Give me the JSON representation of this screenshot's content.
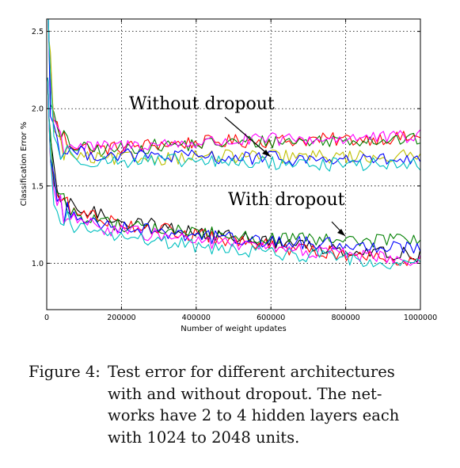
{
  "chart_data": {
    "type": "line",
    "title": "",
    "xlabel": "Number of weight updates",
    "ylabel": "Classification Error %",
    "xlim": [
      0,
      1000000
    ],
    "ylim": [
      0.7,
      2.58
    ],
    "xticks": [
      0,
      200000,
      400000,
      600000,
      800000,
      1000000
    ],
    "xtick_labels": [
      "0",
      "200000",
      "400000",
      "600000",
      "800000",
      "1000000"
    ],
    "yticks": [
      1.0,
      1.5,
      2.0,
      2.5
    ],
    "ytick_labels": [
      "1.0",
      "1.5",
      "2.0",
      "2.5"
    ],
    "grid": true,
    "legend": "none",
    "x": [
      10000,
      20000,
      30000,
      45000,
      60000,
      80000,
      100000,
      150000,
      200000,
      300000,
      400000,
      500000,
      600000,
      700000,
      800000,
      900000,
      1000000
    ],
    "series": [
      {
        "group": "without-dropout",
        "color": "#ff0000",
        "values": [
          2.2,
          1.95,
          1.85,
          1.8,
          1.78,
          1.76,
          1.75,
          1.74,
          1.75,
          1.77,
          1.78,
          1.79,
          1.79,
          1.8,
          1.8,
          1.81,
          1.81
        ]
      },
      {
        "group": "without-dropout",
        "color": "#008000",
        "values": [
          2.1,
          1.9,
          1.83,
          1.78,
          1.76,
          1.75,
          1.74,
          1.73,
          1.74,
          1.76,
          1.77,
          1.78,
          1.79,
          1.79,
          1.8,
          1.8,
          1.8
        ]
      },
      {
        "group": "without-dropout",
        "color": "#ff00ff",
        "values": [
          2.15,
          1.92,
          1.84,
          1.79,
          1.77,
          1.76,
          1.75,
          1.75,
          1.76,
          1.77,
          1.78,
          1.79,
          1.8,
          1.8,
          1.81,
          1.81,
          1.82
        ]
      },
      {
        "group": "without-dropout",
        "color": "#bfbf00",
        "values": [
          2.3,
          1.9,
          1.78,
          1.72,
          1.7,
          1.69,
          1.68,
          1.67,
          1.68,
          1.68,
          1.69,
          1.69,
          1.69,
          1.69,
          1.69,
          1.69,
          1.69
        ]
      },
      {
        "group": "without-dropout",
        "color": "#0000ff",
        "values": [
          2.0,
          1.85,
          1.78,
          1.74,
          1.73,
          1.72,
          1.71,
          1.7,
          1.7,
          1.69,
          1.69,
          1.68,
          1.68,
          1.67,
          1.67,
          1.67,
          1.66
        ]
      },
      {
        "group": "without-dropout",
        "color": "#00bfbf",
        "values": [
          2.2,
          1.82,
          1.75,
          1.71,
          1.69,
          1.68,
          1.67,
          1.66,
          1.66,
          1.66,
          1.66,
          1.65,
          1.65,
          1.64,
          1.64,
          1.64,
          1.63
        ]
      },
      {
        "group": "with-dropout",
        "color": "#000000",
        "values": [
          1.72,
          1.55,
          1.45,
          1.4,
          1.38,
          1.36,
          1.34,
          1.31,
          1.28,
          1.24,
          1.2,
          1.17,
          1.14,
          1.11,
          1.09,
          1.07,
          1.05
        ]
      },
      {
        "group": "with-dropout",
        "color": "#ff0000",
        "values": [
          1.68,
          1.52,
          1.43,
          1.37,
          1.35,
          1.33,
          1.32,
          1.29,
          1.26,
          1.22,
          1.18,
          1.14,
          1.11,
          1.08,
          1.06,
          1.04,
          1.02
        ]
      },
      {
        "group": "with-dropout",
        "color": "#008000",
        "values": [
          1.8,
          1.55,
          1.45,
          1.38,
          1.34,
          1.32,
          1.3,
          1.27,
          1.25,
          1.22,
          1.2,
          1.18,
          1.16,
          1.15,
          1.14,
          1.15,
          1.16
        ]
      },
      {
        "group": "with-dropout",
        "color": "#0000ff",
        "values": [
          1.75,
          1.5,
          1.4,
          1.34,
          1.31,
          1.29,
          1.28,
          1.26,
          1.24,
          1.21,
          1.18,
          1.16,
          1.14,
          1.13,
          1.12,
          1.11,
          1.11
        ]
      },
      {
        "group": "with-dropout",
        "color": "#ff00ff",
        "values": [
          1.66,
          1.48,
          1.38,
          1.32,
          1.29,
          1.27,
          1.26,
          1.23,
          1.21,
          1.18,
          1.15,
          1.12,
          1.1,
          1.08,
          1.06,
          1.04,
          1.02
        ]
      },
      {
        "group": "with-dropout",
        "color": "#00bfbf",
        "values": [
          1.62,
          1.45,
          1.35,
          1.28,
          1.25,
          1.23,
          1.22,
          1.19,
          1.17,
          1.14,
          1.11,
          1.09,
          1.07,
          1.05,
          1.03,
          1.01,
          1.0
        ]
      }
    ],
    "annotations": [
      {
        "text": "Without dropout",
        "arrow_to": [
          590000,
          1.68
        ]
      },
      {
        "text": "With dropout",
        "arrow_to": [
          800000,
          1.2
        ]
      }
    ]
  },
  "caption": {
    "label": "Figure 4:",
    "lines": [
      "Test error for different architectures",
      "with and without dropout. The net-",
      "works have 2 to 4 hidden layers each",
      "with 1024 to 2048 units."
    ]
  }
}
